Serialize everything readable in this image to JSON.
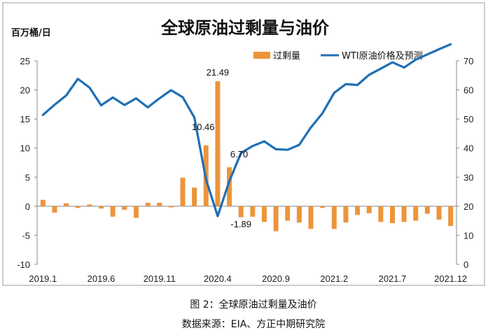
{
  "chart_data": {
    "type": "bar+line",
    "title": "全球原油过剩量与油价",
    "left_unit": "百万桶/日",
    "caption": "图 2：全球原油过剩量及油价",
    "source": "数据来源：EIA、方正中期研究院",
    "x": [
      "2019.1",
      "2019.2",
      "2019.3",
      "2019.4",
      "2019.5",
      "2019.6",
      "2019.7",
      "2019.8",
      "2019.9",
      "2019.10",
      "2019.11",
      "2019.12",
      "2020.1",
      "2020.2",
      "2020.3",
      "2020.4",
      "2020.5",
      "2020.6",
      "2020.7",
      "2020.8",
      "2020.9",
      "2020.10",
      "2020.11",
      "2020.12",
      "2021.1",
      "2021.2",
      "2021.3",
      "2021.4",
      "2021.5",
      "2021.6",
      "2021.7",
      "2021.8",
      "2021.9",
      "2021.10",
      "2021.11",
      "2021.12"
    ],
    "x_tick_labels": [
      "2019.1",
      "2019.6",
      "2019.11",
      "2020.4",
      "2020.9",
      "2021.2",
      "2021.7",
      "2021.12"
    ],
    "x_tick_indices": [
      0,
      5,
      10,
      15,
      20,
      25,
      30,
      35
    ],
    "y_left": {
      "min": -10,
      "max": 25,
      "ticks": [
        25,
        20,
        15,
        10,
        5,
        0,
        -5,
        -10
      ]
    },
    "y_right": {
      "min": 0,
      "max": 70,
      "ticks": [
        70,
        60,
        50,
        40,
        30,
        20,
        10,
        0
      ]
    },
    "series": [
      {
        "name": "过剩量",
        "type": "bar",
        "axis": "left",
        "color": "#ED943B",
        "values": [
          1.1,
          -1.1,
          0.5,
          -0.3,
          0.3,
          -0.4,
          -1.8,
          -0.6,
          -2.0,
          0.6,
          0.6,
          -0.2,
          4.9,
          3.2,
          10.46,
          21.49,
          6.7,
          -1.89,
          -1.8,
          -2.7,
          -4.3,
          -2.5,
          -2.8,
          -3.9,
          -0.3,
          -3.9,
          -2.8,
          -1.5,
          -1.2,
          -2.7,
          -2.9,
          -2.7,
          -2.5,
          -1.3,
          -2.3,
          -3.4
        ]
      },
      {
        "name": "WTI原油价格及预测",
        "type": "line",
        "axis": "right",
        "color": "#1F6FB4",
        "values": [
          51.4,
          54.9,
          58.1,
          63.8,
          60.8,
          54.7,
          57.4,
          54.8,
          57.1,
          54.0,
          57.1,
          59.9,
          57.5,
          50.5,
          29.2,
          16.6,
          28.6,
          38.3,
          40.7,
          42.3,
          39.6,
          39.4,
          41.1,
          47.1,
          52.0,
          59.0,
          62.0,
          61.7,
          65.2,
          67.3,
          69.5,
          67.7,
          70.4,
          72.2,
          74.0,
          75.7
        ]
      }
    ],
    "data_labels": [
      {
        "index": 15,
        "text": "21.49"
      },
      {
        "index": 14,
        "text": "10.46"
      },
      {
        "index": 16,
        "text": "6.70"
      },
      {
        "index": 17,
        "text": "-1.89"
      }
    ]
  },
  "legend": {
    "bar_label": "过剩量",
    "line_label": "WTI原油价格及预测"
  }
}
